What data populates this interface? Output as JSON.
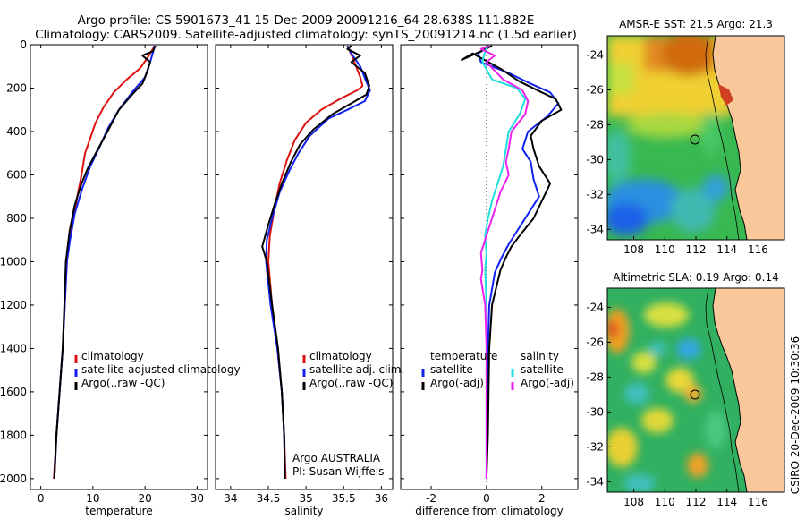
{
  "header": {
    "line1": "Argo profile: CS 5901673_41 15-Dec-2009 20091216_64 28.638S 111.882E",
    "line2": "Climatology: CARS2009. Satellite-adjusted climatology: synTS_20091214.nc (1.5d earlier)"
  },
  "side_label": "CSIRO 20-Dec-2009 10:30:36",
  "colors": {
    "climatology": "#dd1111",
    "satellite": "#1122ee",
    "argo": "#000000",
    "cyan": "#22dddd",
    "magenta": "#ee22ee",
    "land": "#f8c89a"
  },
  "chart_data": [
    {
      "type": "line",
      "xlabel": "temperature",
      "xlim": [
        -2,
        32
      ],
      "ylim": [
        2050,
        0
      ],
      "xticks": [
        0,
        10,
        20,
        30
      ],
      "yticks": [
        0,
        200,
        400,
        600,
        800,
        1000,
        1200,
        1400,
        1600,
        1800,
        2000
      ],
      "legend": [
        "climatology",
        "satellite-adjusted climatology",
        "Argo(..raw -QC)"
      ],
      "series": [
        {
          "name": "climatology",
          "color": "#dd1111",
          "points": [
            [
              21.8,
              5
            ],
            [
              21.5,
              20
            ],
            [
              20.5,
              60
            ],
            [
              19.0,
              110
            ],
            [
              16.5,
              160
            ],
            [
              14.0,
              220
            ],
            [
              12.0,
              290
            ],
            [
              10.5,
              360
            ],
            [
              9.5,
              430
            ],
            [
              8.5,
              500
            ],
            [
              7.8,
              600
            ],
            [
              7.0,
              700
            ],
            [
              6.2,
              800
            ],
            [
              5.5,
              900
            ],
            [
              5.0,
              1000
            ],
            [
              4.6,
              1200
            ],
            [
              4.2,
              1400
            ],
            [
              3.6,
              1600
            ],
            [
              3.0,
              1800
            ],
            [
              2.5,
              2000
            ]
          ]
        },
        {
          "name": "satellite-adjusted climatology",
          "color": "#1122ee",
          "points": [
            [
              21.8,
              5
            ],
            [
              21.6,
              30
            ],
            [
              21.0,
              80
            ],
            [
              20.0,
              150
            ],
            [
              17.5,
              220
            ],
            [
              15.0,
              300
            ],
            [
              13.0,
              380
            ],
            [
              11.5,
              460
            ],
            [
              9.5,
              560
            ],
            [
              8.0,
              660
            ],
            [
              6.5,
              780
            ],
            [
              5.6,
              900
            ],
            [
              5.0,
              1000
            ],
            [
              4.6,
              1200
            ],
            [
              4.2,
              1400
            ],
            [
              3.6,
              1600
            ],
            [
              3.0,
              1800
            ],
            [
              2.6,
              2000
            ]
          ]
        },
        {
          "name": "Argo(..raw -QC)",
          "color": "#000000",
          "points": [
            [
              22.0,
              5
            ],
            [
              21.5,
              30
            ],
            [
              19.5,
              50
            ],
            [
              21.0,
              80
            ],
            [
              20.5,
              120
            ],
            [
              19.5,
              180
            ],
            [
              17.5,
              230
            ],
            [
              15.0,
              300
            ],
            [
              13.0,
              390
            ],
            [
              11.0,
              480
            ],
            [
              9.0,
              570
            ],
            [
              7.8,
              640
            ],
            [
              6.5,
              740
            ],
            [
              5.5,
              860
            ],
            [
              5.0,
              960
            ],
            [
              4.8,
              1000
            ],
            [
              4.5,
              1200
            ],
            [
              4.2,
              1400
            ],
            [
              3.6,
              1600
            ],
            [
              3.0,
              1800
            ],
            [
              2.6,
              2000
            ]
          ]
        }
      ]
    },
    {
      "type": "line",
      "xlabel": "salinity",
      "xlim": [
        33.8,
        36.15
      ],
      "ylim": [
        2050,
        0
      ],
      "xticks": [
        34,
        34.5,
        35,
        35.5,
        36
      ],
      "legend": [
        "climatology",
        "satellite adj. clim.",
        "Argo(..raw -QC)"
      ],
      "annotations": [
        "Argo AUSTRALIA",
        "PI: Susan Wijffels"
      ],
      "series": [
        {
          "name": "climatology",
          "color": "#dd1111",
          "points": [
            [
              35.55,
              5
            ],
            [
              35.62,
              60
            ],
            [
              35.72,
              150
            ],
            [
              35.75,
              190
            ],
            [
              35.68,
              210
            ],
            [
              35.45,
              250
            ],
            [
              35.2,
              300
            ],
            [
              35.0,
              360
            ],
            [
              34.85,
              440
            ],
            [
              34.75,
              530
            ],
            [
              34.65,
              640
            ],
            [
              34.58,
              760
            ],
            [
              34.52,
              880
            ],
            [
              34.5,
              1000
            ],
            [
              34.55,
              1200
            ],
            [
              34.62,
              1400
            ],
            [
              34.68,
              1600
            ],
            [
              34.71,
              1800
            ],
            [
              34.73,
              2000
            ]
          ]
        },
        {
          "name": "satellite adj. clim.",
          "color": "#1122ee",
          "points": [
            [
              35.55,
              5
            ],
            [
              35.6,
              40
            ],
            [
              35.72,
              100
            ],
            [
              35.8,
              170
            ],
            [
              35.85,
              210
            ],
            [
              35.78,
              260
            ],
            [
              35.55,
              300
            ],
            [
              35.3,
              340
            ],
            [
              35.05,
              420
            ],
            [
              34.9,
              500
            ],
            [
              34.78,
              580
            ],
            [
              34.65,
              680
            ],
            [
              34.55,
              800
            ],
            [
              34.48,
              900
            ],
            [
              34.47,
              1000
            ],
            [
              34.53,
              1200
            ],
            [
              34.62,
              1400
            ],
            [
              34.68,
              1600
            ],
            [
              34.71,
              1800
            ],
            [
              34.72,
              2000
            ]
          ]
        },
        {
          "name": "Argo(..raw -QC)",
          "color": "#000000",
          "points": [
            [
              35.6,
              5
            ],
            [
              35.55,
              20
            ],
            [
              35.72,
              50
            ],
            [
              35.6,
              80
            ],
            [
              35.78,
              130
            ],
            [
              35.84,
              190
            ],
            [
              35.8,
              230
            ],
            [
              35.6,
              270
            ],
            [
              35.35,
              320
            ],
            [
              35.1,
              390
            ],
            [
              34.92,
              460
            ],
            [
              34.8,
              540
            ],
            [
              34.68,
              640
            ],
            [
              34.58,
              740
            ],
            [
              34.5,
              830
            ],
            [
              34.42,
              930
            ],
            [
              34.48,
              1000
            ],
            [
              34.55,
              1200
            ],
            [
              34.63,
              1400
            ],
            [
              34.68,
              1600
            ],
            [
              34.71,
              1800
            ],
            [
              34.72,
              2000
            ]
          ]
        }
      ]
    },
    {
      "type": "line",
      "xlabel": "difference from climatology",
      "xlim": [
        -3.1,
        3.3
      ],
      "ylim": [
        2050,
        0
      ],
      "xticks": [
        -2,
        0,
        2
      ],
      "legend": [
        "temperature",
        "satellite",
        "Argo(-adj)",
        "salinity",
        "satellite",
        "Argo(-adj)"
      ],
      "series": [
        {
          "name": "satellite",
          "color": "#1122ee",
          "points": [
            [
              0.1,
              5
            ],
            [
              -0.3,
              40
            ],
            [
              -0.2,
              80
            ],
            [
              0.8,
              130
            ],
            [
              1.6,
              180
            ],
            [
              2.3,
              220
            ],
            [
              2.6,
              270
            ],
            [
              2.2,
              330
            ],
            [
              1.5,
              400
            ],
            [
              1.3,
              480
            ],
            [
              1.6,
              540
            ],
            [
              1.7,
              620
            ],
            [
              1.9,
              700
            ],
            [
              1.5,
              780
            ],
            [
              1.1,
              860
            ],
            [
              0.8,
              920
            ],
            [
              0.55,
              980
            ],
            [
              0.3,
              1050
            ],
            [
              0.1,
              1200
            ],
            [
              0.05,
              1400
            ],
            [
              0.02,
              1800
            ],
            [
              0.0,
              2000
            ]
          ]
        },
        {
          "name": "Argo(-adj)",
          "color": "#000000",
          "points": [
            [
              0.2,
              5
            ],
            [
              -0.2,
              30
            ],
            [
              -0.9,
              70
            ],
            [
              -0.5,
              40
            ],
            [
              0.5,
              110
            ],
            [
              1.2,
              170
            ],
            [
              2.0,
              220
            ],
            [
              2.5,
              250
            ],
            [
              2.7,
              300
            ],
            [
              2.0,
              350
            ],
            [
              1.6,
              420
            ],
            [
              1.7,
              480
            ],
            [
              1.9,
              560
            ],
            [
              2.3,
              640
            ],
            [
              2.0,
              720
            ],
            [
              1.7,
              800
            ],
            [
              1.2,
              880
            ],
            [
              0.9,
              930
            ],
            [
              0.7,
              980
            ],
            [
              0.5,
              1040
            ],
            [
              0.2,
              1200
            ],
            [
              0.1,
              1400
            ],
            [
              0.05,
              1800
            ],
            [
              0.0,
              2000
            ]
          ]
        },
        {
          "name": "satellite",
          "color": "#22dddd",
          "points": [
            [
              0.05,
              5
            ],
            [
              -0.05,
              30
            ],
            [
              -0.15,
              80
            ],
            [
              0.2,
              160
            ],
            [
              1.1,
              200
            ],
            [
              1.4,
              250
            ],
            [
              1.2,
              320
            ],
            [
              0.8,
              400
            ],
            [
              0.7,
              480
            ],
            [
              0.6,
              560
            ],
            [
              0.4,
              640
            ],
            [
              0.2,
              720
            ],
            [
              0.05,
              800
            ],
            [
              -0.05,
              880
            ],
            [
              0.0,
              960
            ],
            [
              -0.05,
              1040
            ],
            [
              0.0,
              1200
            ],
            [
              0.0,
              1400
            ],
            [
              0.0,
              1800
            ],
            [
              0.0,
              2000
            ]
          ]
        },
        {
          "name": "Argo(-adj)",
          "color": "#ee22ee",
          "points": [
            [
              0.1,
              5
            ],
            [
              -0.2,
              20
            ],
            [
              0.3,
              50
            ],
            [
              0.0,
              80
            ],
            [
              0.6,
              160
            ],
            [
              1.3,
              210
            ],
            [
              1.5,
              260
            ],
            [
              1.4,
              320
            ],
            [
              0.9,
              400
            ],
            [
              0.8,
              480
            ],
            [
              0.7,
              540
            ],
            [
              0.8,
              600
            ],
            [
              0.5,
              680
            ],
            [
              0.3,
              760
            ],
            [
              0.0,
              880
            ],
            [
              -0.2,
              960
            ],
            [
              -0.15,
              1040
            ],
            [
              -0.2,
              1080
            ],
            [
              -0.05,
              1200
            ],
            [
              0.0,
              1400
            ],
            [
              0.0,
              1800
            ],
            [
              0.0,
              2000
            ]
          ]
        }
      ]
    },
    {
      "type": "heatmap",
      "title": "AMSR-E SST: 21.5 Argo: 21.3",
      "xlim": [
        106.3,
        117.7
      ],
      "ylim": [
        -34.6,
        -22.9
      ],
      "xticks": [
        108,
        110,
        112,
        114,
        116
      ],
      "yticks": [
        -24,
        -26,
        -28,
        -30,
        -32,
        -34
      ],
      "marker": [
        111.9,
        -28.6
      ]
    },
    {
      "type": "heatmap",
      "title": "Altimetric SLA: 0.19 Argo: 0.14",
      "xlim": [
        106.3,
        117.7
      ],
      "ylim": [
        -34.6,
        -22.9
      ],
      "xticks": [
        108,
        110,
        112,
        114,
        116
      ],
      "yticks": [
        -24,
        -26,
        -28,
        -30,
        -32,
        -34
      ],
      "marker": [
        111.9,
        -28.6
      ]
    }
  ]
}
